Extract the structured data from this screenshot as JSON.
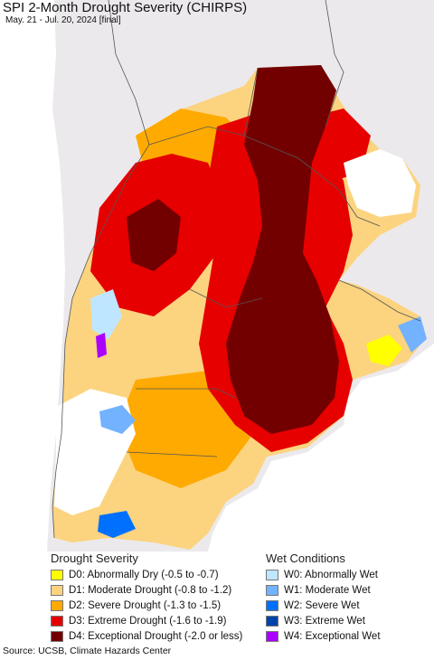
{
  "header": {
    "title": "SPI 2-Month Drought Severity (CHIRPS)",
    "subtitle": "May. 21 - Jul. 20, 2024 [final]"
  },
  "legend": {
    "drought": {
      "heading": "Drought Severity",
      "items": [
        {
          "label": "D0: Abnormally Dry (-0.5 to -0.7)",
          "color": "#ffff00"
        },
        {
          "label": "D1: Moderate Drought (-0.8 to -1.2)",
          "color": "#fcd37f"
        },
        {
          "label": "D2: Severe Drought (-1.3 to -1.5)",
          "color": "#ffaa00"
        },
        {
          "label": "D3: Extreme Drought (-1.6 to -1.9)",
          "color": "#e60000"
        },
        {
          "label": "D4: Exceptional Drought (-2.0 or less)",
          "color": "#730000"
        }
      ]
    },
    "wet": {
      "heading": "Wet Conditions",
      "items": [
        {
          "label": "W0: Abnormally Wet",
          "color": "#bfe6ff"
        },
        {
          "label": "W1: Moderate Wet",
          "color": "#73b2ff"
        },
        {
          "label": "W2: Severe Wet",
          "color": "#0070ff"
        },
        {
          "label": "W3: Extreme Wet",
          "color": "#0044aa"
        },
        {
          "label": "W4: Exceptional Wet",
          "color": "#aa00ff"
        }
      ]
    }
  },
  "footer": {
    "source": "Source: UCSB, Climate Hazards Center"
  },
  "map": {
    "background_color": "#ece9ec",
    "ocean_color": "#ffffff"
  }
}
